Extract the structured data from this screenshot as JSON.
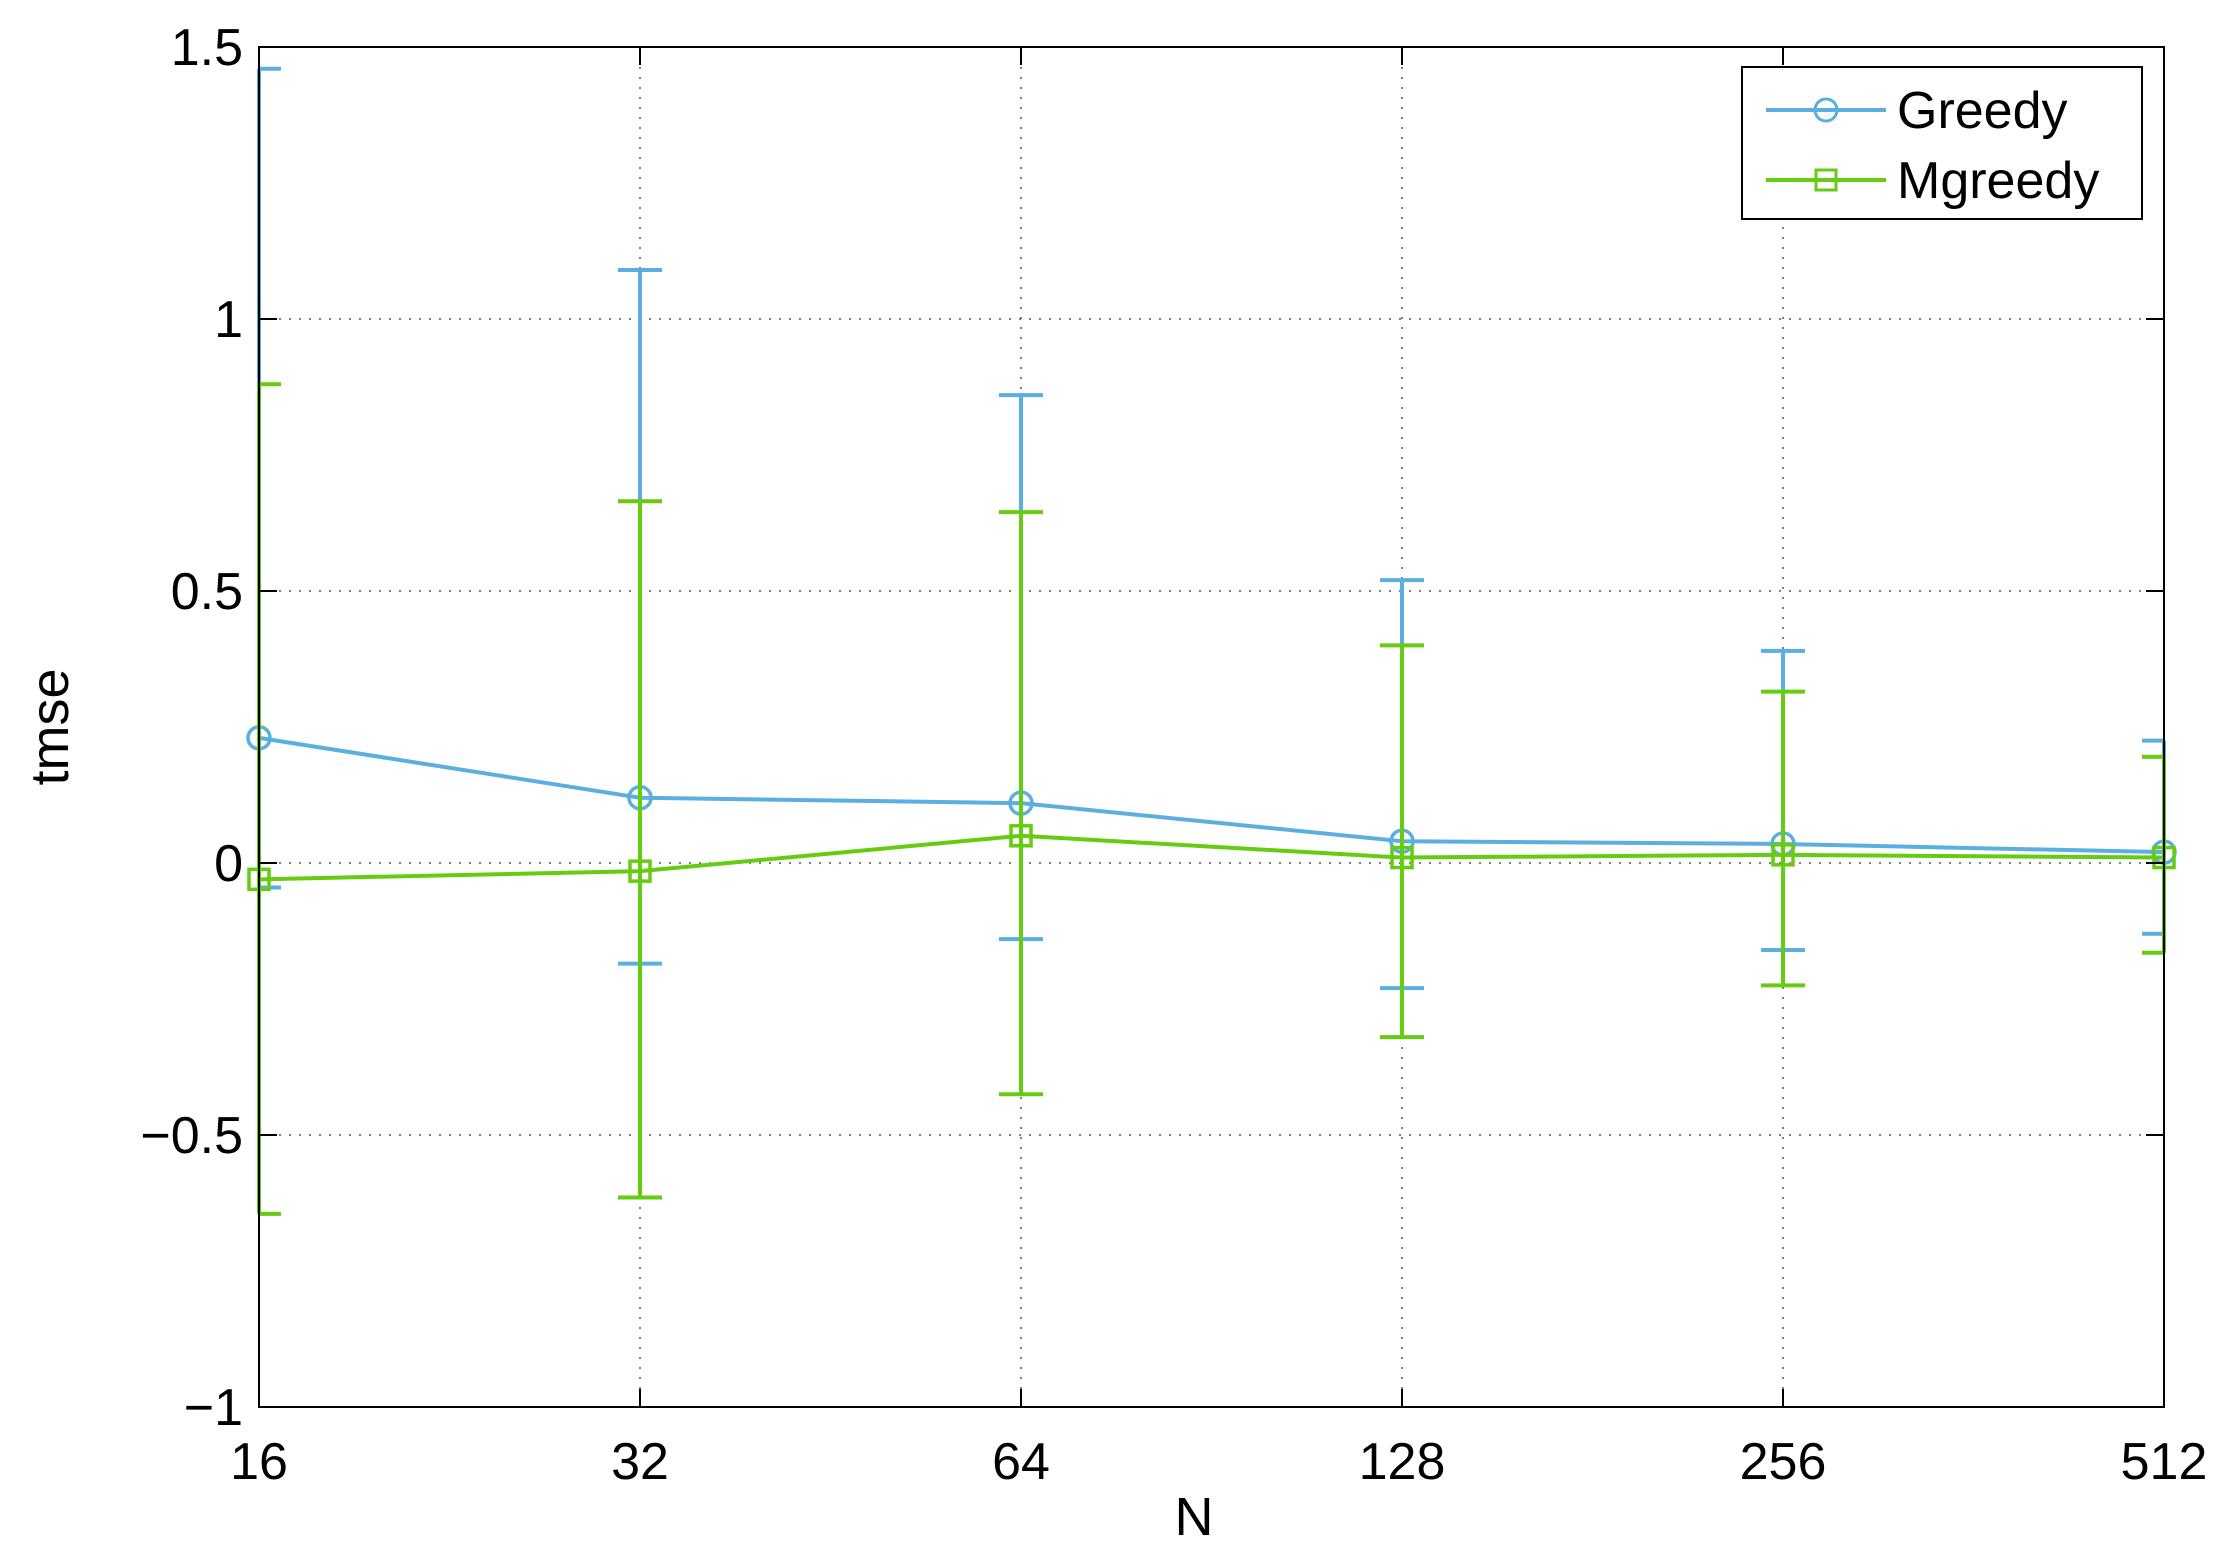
{
  "chart_data": {
    "type": "line",
    "x": [
      16,
      32,
      64,
      128,
      256,
      512
    ],
    "x_scale": "log2",
    "xlabel": "N",
    "ylabel": "tmse",
    "ylim": [
      -1,
      1.5
    ],
    "xticks": [
      "16",
      "32",
      "64",
      "128",
      "256",
      "512"
    ],
    "yticks": [
      "−1",
      "−0.5",
      "0",
      "0.5",
      "1",
      "1.5"
    ],
    "ytick_values": [
      -1,
      -0.5,
      0,
      0.5,
      1,
      1.5
    ],
    "grid": true,
    "legend_position": "top-right",
    "series": [
      {
        "name": "Greedy",
        "color": "#5aafe0",
        "marker": "circle",
        "values": [
          0.23,
          0.12,
          0.11,
          0.04,
          0.035,
          0.02
        ],
        "err_upper": [
          1.46,
          1.09,
          0.86,
          0.52,
          0.39,
          0.225
        ],
        "err_lower": [
          -0.045,
          -0.185,
          -0.14,
          -0.23,
          -0.16,
          -0.13
        ]
      },
      {
        "name": "Mgreedy",
        "color": "#66cc11",
        "marker": "square",
        "values": [
          -0.03,
          -0.015,
          0.05,
          0.01,
          0.015,
          0.01
        ],
        "err_upper": [
          0.88,
          0.665,
          0.645,
          0.4,
          0.315,
          0.195
        ],
        "err_lower": [
          -0.645,
          -0.615,
          -0.425,
          -0.32,
          -0.225,
          -0.165
        ]
      }
    ]
  }
}
